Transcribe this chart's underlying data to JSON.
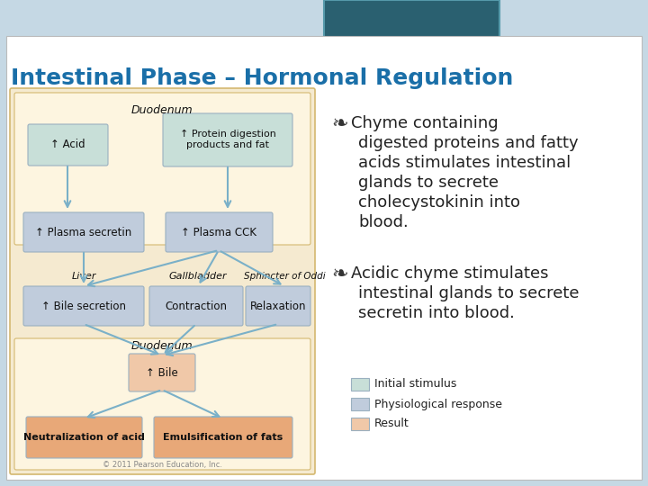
{
  "title": "Intestinal Phase – Hormonal Regulation",
  "title_color": "#1a6fa8",
  "background_color": "#c5d8e4",
  "slide_bg": "#ffffff",
  "diagram_bg": "#f5ead0",
  "diagram_bg2": "#f0e0c0",
  "teal_box_color": "#2a6070",
  "teal_box_border": "#5599aa",
  "arrow_color": "#7ab0c8",
  "box_border": "#9ab0c0",
  "initial_color": "#c8dfd8",
  "physio_color": "#c0ccdc",
  "result_color": "#f0c8a8",
  "result_dark": "#e8a878",
  "text_dark": "#222222",
  "copyright": "© 2011 Pearson Education, Inc.",
  "bullet_symbol": "❧",
  "bullet1_lines": [
    "Chyme containing",
    "digested proteins and fatty",
    "acids stimulates intestinal",
    "glands to secrete",
    "cholecystokinin into",
    "blood."
  ],
  "bullet2_lines": [
    "Acidic chyme stimulates",
    "intestinal glands to secrete",
    "secretin into blood."
  ],
  "legend": [
    {
      "label": "Initial stimulus",
      "color": "#c8dfd8"
    },
    {
      "label": "Physiological response",
      "color": "#c0ccdc"
    },
    {
      "label": "Result",
      "color": "#f0c8a8"
    }
  ]
}
